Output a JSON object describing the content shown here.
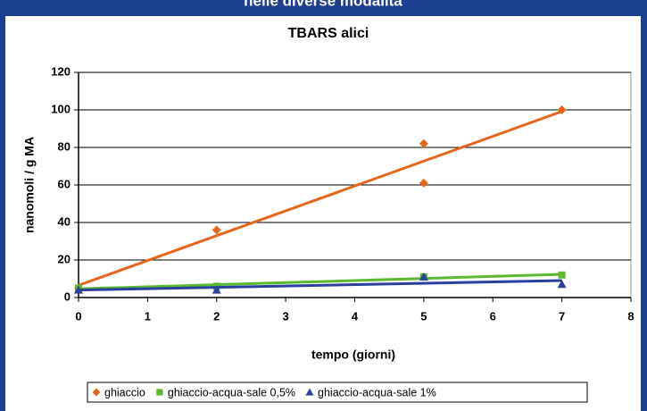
{
  "chart_data": {
    "type": "scatter",
    "header": "nelle diverse modalità",
    "title": "TBARS alici",
    "x_label": "tempo (giorni)",
    "y_label": "nanomoli / g MA",
    "xlim": [
      0,
      8
    ],
    "xticks": [
      0,
      1,
      2,
      3,
      4,
      5,
      6,
      7,
      8
    ],
    "ylim": [
      0,
      120
    ],
    "yticks": [
      0,
      20,
      40,
      60,
      80,
      100,
      120
    ],
    "grid": true,
    "trendline": "linear",
    "legend": "bottom",
    "series": [
      {
        "name": "ghiaccio",
        "color": "#e8661c",
        "marker": "diamond",
        "x": [
          0,
          2,
          5,
          5,
          7
        ],
        "values": [
          5,
          36,
          82,
          61,
          100
        ]
      },
      {
        "name": "ghiaccio-acqua-sale 0,5%",
        "color": "#5cb82e",
        "marker": "square",
        "x": [
          0,
          2,
          5,
          7
        ],
        "values": [
          5,
          6,
          11,
          12
        ]
      },
      {
        "name": "ghiaccio-acqua-sale 1%",
        "color": "#2a3f9e",
        "marker": "triangle",
        "x": [
          0,
          2,
          5,
          7
        ],
        "values": [
          4,
          4,
          11,
          7
        ]
      }
    ]
  }
}
